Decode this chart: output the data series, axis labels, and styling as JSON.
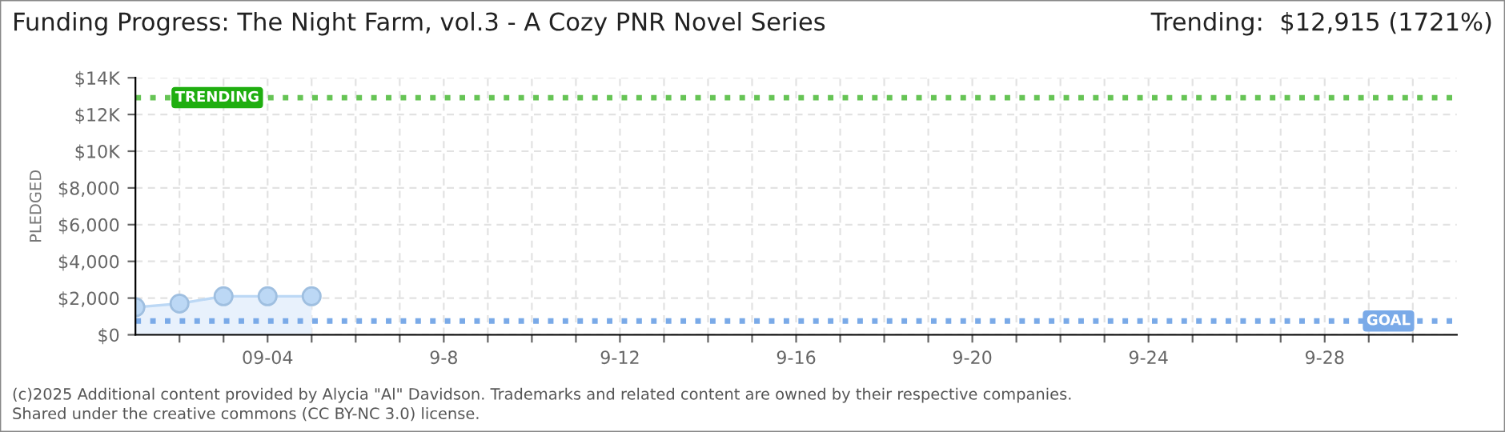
{
  "chart_data": {
    "type": "area",
    "title": "Funding Progress: The Night Farm, vol.3 - A Cozy PNR Novel Series",
    "subtitle": "Trending:  $12,915 (1721%)",
    "ylabel": "PLEDGED",
    "x": [
      "2025-09-01",
      "2025-09-02",
      "2025-09-03",
      "2025-09-04",
      "2025-09-05"
    ],
    "series": [
      {
        "color": "#bcd8f5",
        "values": [
          1500,
          1700,
          2100,
          2100,
          2100
        ]
      }
    ],
    "marker": "circle",
    "line_style": "solid",
    "grid": true,
    "legend": false,
    "xlim": [
      "2025-09-01",
      "2025-10-01"
    ],
    "xticks": [
      {
        "value": "2025-09-02",
        "label": null
      },
      {
        "value": "2025-09-03",
        "label": null
      },
      {
        "value": "2025-09-04",
        "label": "09-04"
      },
      {
        "value": "2025-09-05",
        "label": null
      },
      {
        "value": "2025-09-06",
        "label": null
      },
      {
        "value": "2025-09-07",
        "label": null
      },
      {
        "value": "2025-09-08",
        "label": "9-8"
      },
      {
        "value": "2025-09-09",
        "label": null
      },
      {
        "value": "2025-09-10",
        "label": null
      },
      {
        "value": "2025-09-11",
        "label": null
      },
      {
        "value": "2025-09-12",
        "label": "9-12"
      },
      {
        "value": "2025-09-13",
        "label": null
      },
      {
        "value": "2025-09-14",
        "label": null
      },
      {
        "value": "2025-09-15",
        "label": null
      },
      {
        "value": "2025-09-16",
        "label": "9-16"
      },
      {
        "value": "2025-09-17",
        "label": null
      },
      {
        "value": "2025-09-18",
        "label": null
      },
      {
        "value": "2025-09-19",
        "label": null
      },
      {
        "value": "2025-09-20",
        "label": "9-20"
      },
      {
        "value": "2025-09-21",
        "label": null
      },
      {
        "value": "2025-09-22",
        "label": null
      },
      {
        "value": "2025-09-23",
        "label": null
      },
      {
        "value": "2025-09-24",
        "label": "9-24"
      },
      {
        "value": "2025-09-25",
        "label": null
      },
      {
        "value": "2025-09-26",
        "label": null
      },
      {
        "value": "2025-09-27",
        "label": null
      },
      {
        "value": "2025-09-28",
        "label": "9-28"
      },
      {
        "value": "2025-09-29",
        "label": null
      },
      {
        "value": "2025-09-30",
        "label": null
      }
    ],
    "ylim": [
      0,
      14000
    ],
    "yticks": [
      {
        "value": 0,
        "label": "$0"
      },
      {
        "value": 2000,
        "label": "$2,000"
      },
      {
        "value": 4000,
        "label": "$4,000"
      },
      {
        "value": 6000,
        "label": "$6,000"
      },
      {
        "value": 8000,
        "label": "$8,000"
      },
      {
        "value": 10000,
        "label": "$10K"
      },
      {
        "value": 12000,
        "label": "$12K"
      },
      {
        "value": 14000,
        "label": "$14K"
      }
    ],
    "ref_lines": [
      {
        "axis": "y",
        "value": 12915,
        "label": "TRENDING",
        "color": "#66c455",
        "line_style": "dotted"
      },
      {
        "axis": "y",
        "value": 750,
        "label": "GOAL",
        "color": "#7aaae8",
        "line_style": "dotted"
      }
    ],
    "annotations": [
      "(c)2025 Additional content provided by Alycia \"Al\" Davidson. Trademarks and related content are owned by their respective companies.",
      "Shared under the creative commons (CC BY-NC 3.0) license."
    ]
  }
}
